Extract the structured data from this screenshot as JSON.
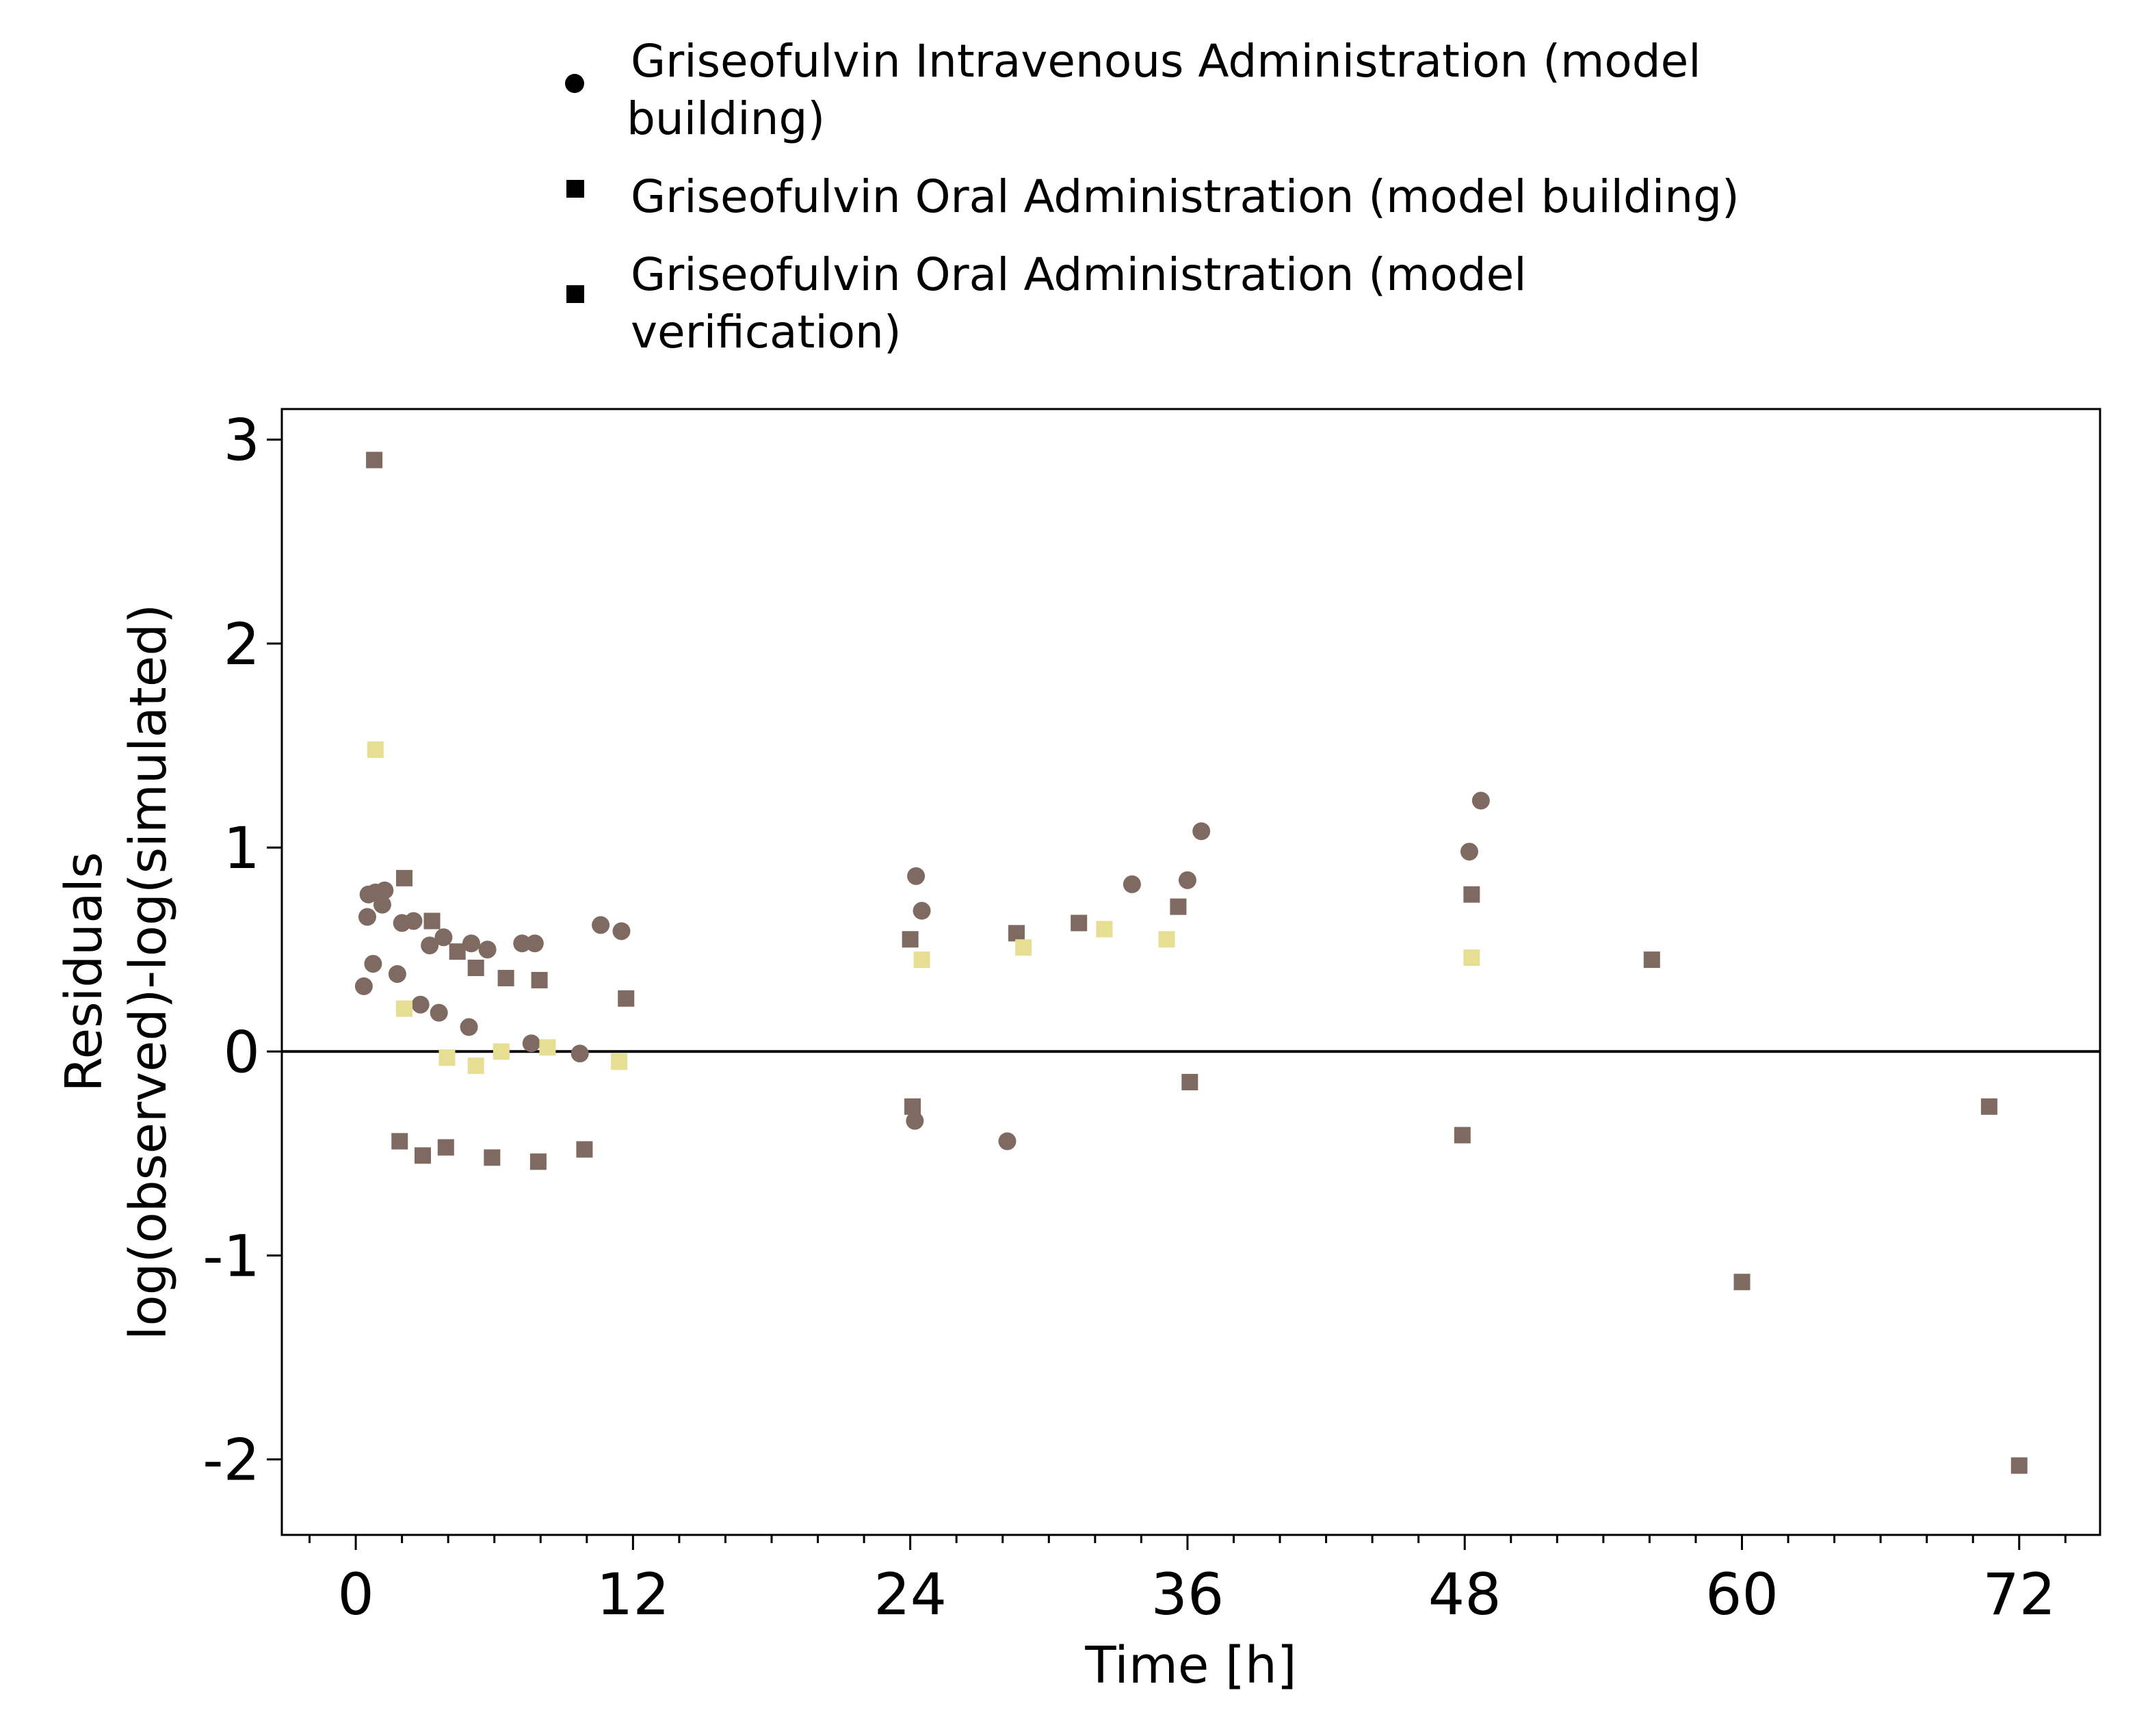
{
  "chart_data": {
    "type": "scatter",
    "xlabel": "Time [h]",
    "ylabel_lines": [
      "Residuals",
      "log(observed)-log(simulated)"
    ],
    "xlim": [
      -3.2,
      75.5
    ],
    "ylim": [
      -2.37,
      3.15
    ],
    "x_ticks": [
      0,
      12,
      24,
      36,
      48,
      60,
      72
    ],
    "x_minor_step": 2,
    "y_ticks": [
      -2,
      -1,
      0,
      1,
      2,
      3
    ],
    "reference_line_y": 0,
    "grid": false,
    "legend_position": "top",
    "series": [
      {
        "name_lines": [
          "Griseofulvin Intravenous Administration (model",
          "building)"
        ],
        "marker": "circle",
        "legend_marker_color": "#000000",
        "color": "#7f6a61",
        "points": [
          {
            "x": 0.35,
            "y": 0.32
          },
          {
            "x": 0.5,
            "y": 0.66
          },
          {
            "x": 0.55,
            "y": 0.77
          },
          {
            "x": 0.75,
            "y": 0.43
          },
          {
            "x": 0.85,
            "y": 0.78
          },
          {
            "x": 1.15,
            "y": 0.72
          },
          {
            "x": 1.25,
            "y": 0.79
          },
          {
            "x": 1.8,
            "y": 0.38
          },
          {
            "x": 2.0,
            "y": 0.63
          },
          {
            "x": 2.5,
            "y": 0.64
          },
          {
            "x": 2.8,
            "y": 0.23
          },
          {
            "x": 3.2,
            "y": 0.52
          },
          {
            "x": 3.6,
            "y": 0.19
          },
          {
            "x": 3.8,
            "y": 0.56
          },
          {
            "x": 4.9,
            "y": 0.12
          },
          {
            "x": 5.0,
            "y": 0.53
          },
          {
            "x": 5.7,
            "y": 0.5
          },
          {
            "x": 7.2,
            "y": 0.53
          },
          {
            "x": 7.6,
            "y": 0.04
          },
          {
            "x": 7.75,
            "y": 0.53
          },
          {
            "x": 9.7,
            "y": -0.01
          },
          {
            "x": 10.6,
            "y": 0.62
          },
          {
            "x": 11.5,
            "y": 0.59
          },
          {
            "x": 24.2,
            "y": -0.34
          },
          {
            "x": 24.25,
            "y": 0.86
          },
          {
            "x": 24.5,
            "y": 0.69
          },
          {
            "x": 28.2,
            "y": -0.44
          },
          {
            "x": 33.6,
            "y": 0.82
          },
          {
            "x": 36.0,
            "y": 0.84
          },
          {
            "x": 36.6,
            "y": 1.08
          },
          {
            "x": 48.2,
            "y": 0.98
          },
          {
            "x": 48.7,
            "y": 1.23
          }
        ]
      },
      {
        "name_lines": [
          "Griseofulvin Oral Administration (model building)"
        ],
        "marker": "square",
        "legend_marker_color": "#000000",
        "color": "#7f6a61",
        "points": [
          {
            "x": 0.8,
            "y": 2.9
          },
          {
            "x": 1.9,
            "y": -0.44
          },
          {
            "x": 2.1,
            "y": 0.85
          },
          {
            "x": 2.9,
            "y": -0.51
          },
          {
            "x": 3.3,
            "y": 0.64
          },
          {
            "x": 3.9,
            "y": -0.47
          },
          {
            "x": 4.4,
            "y": 0.49
          },
          {
            "x": 5.2,
            "y": 0.41
          },
          {
            "x": 5.9,
            "y": -0.52
          },
          {
            "x": 6.5,
            "y": 0.36
          },
          {
            "x": 7.9,
            "y": -0.54
          },
          {
            "x": 7.95,
            "y": 0.35
          },
          {
            "x": 9.9,
            "y": -0.48
          },
          {
            "x": 11.7,
            "y": 0.26
          },
          {
            "x": 24.0,
            "y": 0.55
          },
          {
            "x": 24.1,
            "y": -0.27
          },
          {
            "x": 28.6,
            "y": 0.58
          },
          {
            "x": 31.3,
            "y": 0.63
          },
          {
            "x": 35.6,
            "y": 0.71
          },
          {
            "x": 36.1,
            "y": -0.15
          },
          {
            "x": 47.9,
            "y": -0.41
          },
          {
            "x": 48.3,
            "y": 0.77
          },
          {
            "x": 56.1,
            "y": 0.45
          },
          {
            "x": 60.0,
            "y": -1.13
          },
          {
            "x": 70.7,
            "y": -0.27
          },
          {
            "x": 72.0,
            "y": -2.03
          }
        ]
      },
      {
        "name_lines": [
          "Griseofulvin Oral Administration (model",
          "verification)"
        ],
        "marker": "square",
        "legend_marker_color": "#000000",
        "color": "#e6de93",
        "points": [
          {
            "x": 0.85,
            "y": 1.48
          },
          {
            "x": 2.1,
            "y": 0.21
          },
          {
            "x": 3.95,
            "y": -0.03
          },
          {
            "x": 5.2,
            "y": -0.07
          },
          {
            "x": 6.3,
            "y": 0.0
          },
          {
            "x": 8.3,
            "y": 0.02
          },
          {
            "x": 11.4,
            "y": -0.05
          },
          {
            "x": 24.5,
            "y": 0.45
          },
          {
            "x": 28.9,
            "y": 0.51
          },
          {
            "x": 32.4,
            "y": 0.6
          },
          {
            "x": 35.1,
            "y": 0.55
          },
          {
            "x": 48.3,
            "y": 0.46
          }
        ]
      }
    ]
  }
}
